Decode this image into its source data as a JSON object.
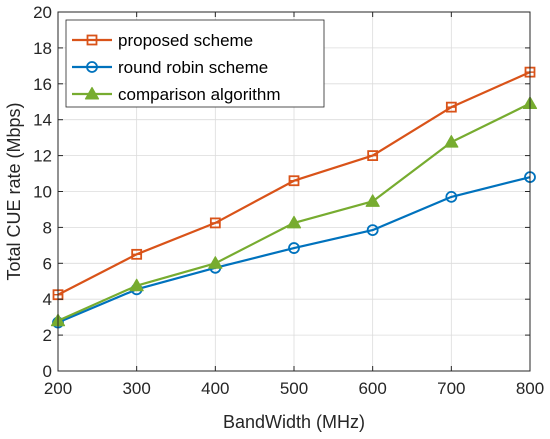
{
  "chart_data": {
    "type": "line",
    "title": "",
    "xlabel": "BandWidth (MHz)",
    "ylabel": "Total CUE rate (Mbps)",
    "x": [
      200,
      300,
      400,
      500,
      600,
      700,
      800
    ],
    "xlim": [
      200,
      800
    ],
    "ylim": [
      0,
      20
    ],
    "xticks": [
      "200",
      "300",
      "400",
      "500",
      "600",
      "700",
      "800"
    ],
    "yticks": [
      "0",
      "2",
      "4",
      "6",
      "8",
      "10",
      "12",
      "14",
      "16",
      "18",
      "20"
    ],
    "grid": true,
    "legend_position": "top-left",
    "series": [
      {
        "name": "proposed scheme",
        "marker": "square",
        "color": "#d95319",
        "values": [
          4.25,
          6.5,
          8.25,
          10.6,
          12.0,
          14.7,
          16.65
        ]
      },
      {
        "name": "round robin scheme",
        "marker": "circle",
        "color": "#0072bd",
        "values": [
          2.7,
          4.55,
          5.75,
          6.85,
          7.85,
          9.7,
          10.8
        ]
      },
      {
        "name": "comparison algorithm",
        "marker": "triangle",
        "color": "#77ac30",
        "values": [
          2.8,
          4.75,
          6.0,
          8.25,
          9.45,
          12.75,
          14.9
        ]
      }
    ]
  }
}
